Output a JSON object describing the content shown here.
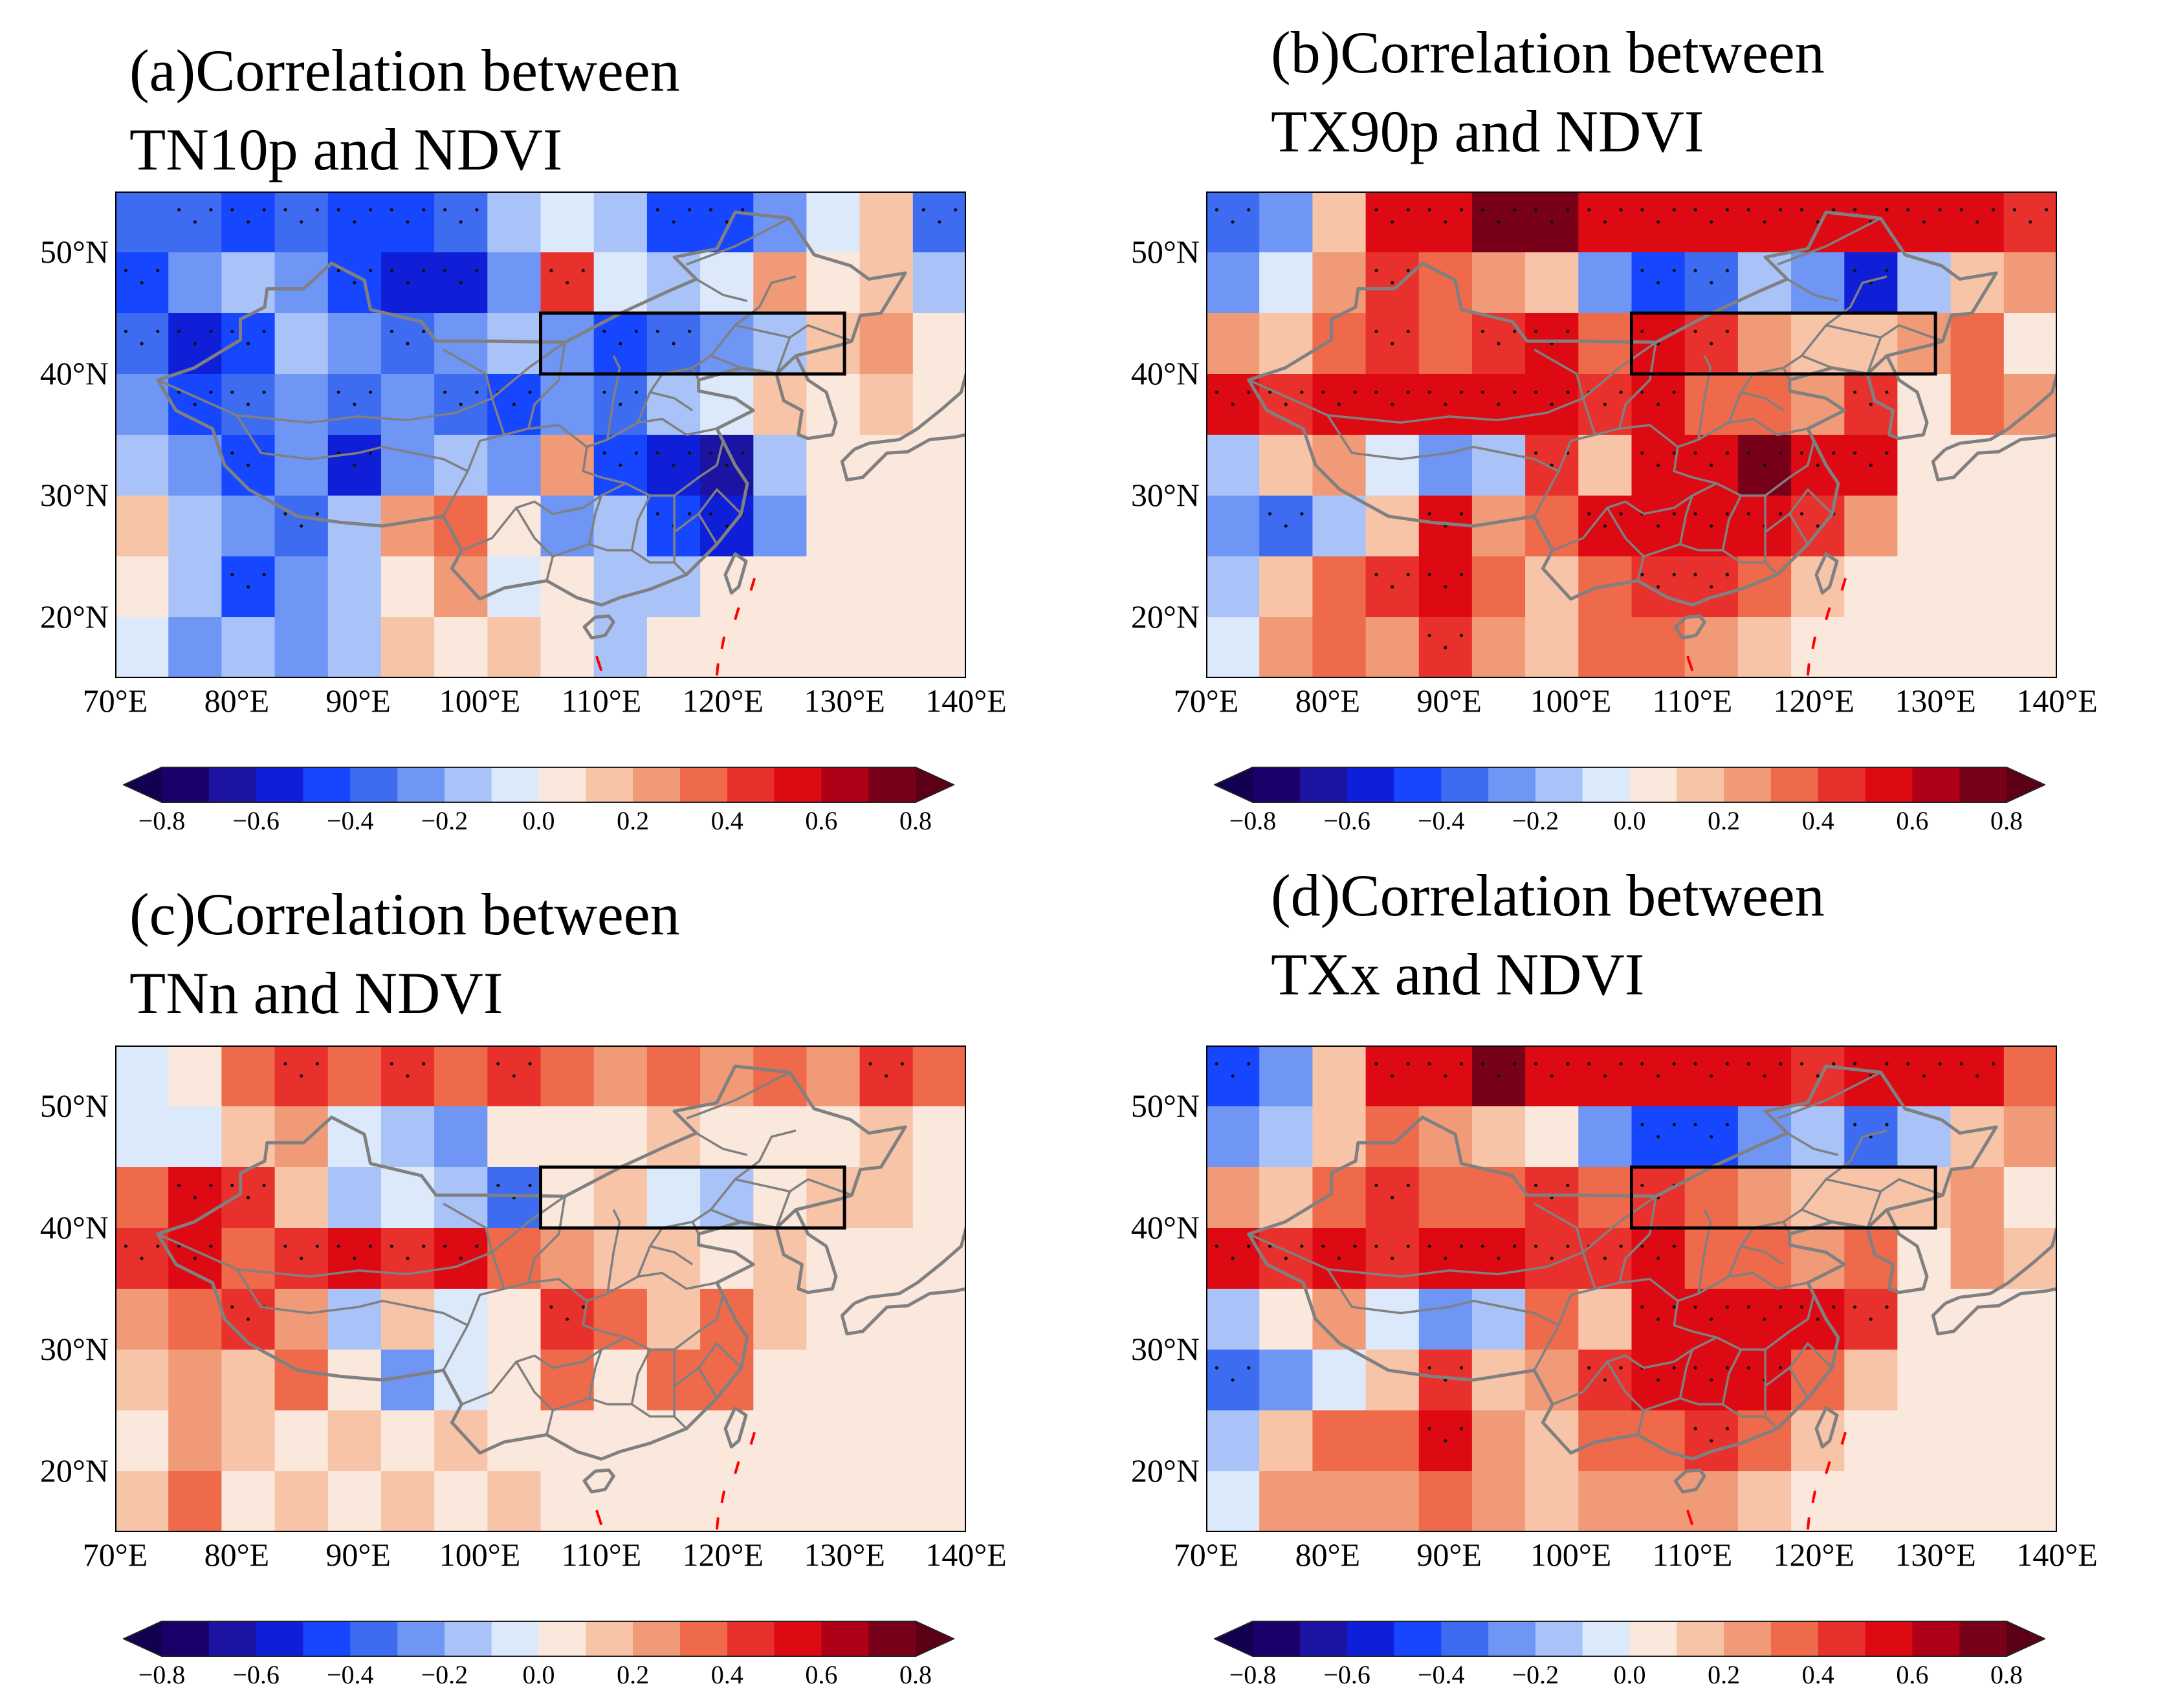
{
  "panels": [
    {
      "id": "a",
      "title_line1": "(a)Correlation between",
      "title_line2": "TN10p and NDVI",
      "fields": [
        [
          -0.35,
          -0.4,
          -0.5,
          -0.4,
          -0.5,
          -0.5,
          -0.4,
          -0.2,
          -0.1,
          -0.2,
          -0.5,
          -0.5,
          -0.3,
          -0.1,
          0.1,
          -0.4
        ],
        [
          -0.5,
          -0.3,
          -0.2,
          -0.3,
          -0.5,
          -0.6,
          -0.6,
          -0.3,
          0.4,
          -0.1,
          -0.2,
          -0.1,
          0.2,
          0.0,
          0.1,
          -0.2
        ],
        [
          -0.4,
          -0.6,
          -0.5,
          -0.2,
          -0.3,
          -0.4,
          -0.3,
          -0.2,
          -0.3,
          -0.5,
          -0.4,
          -0.3,
          -0.2,
          0.1,
          0.2,
          0.0
        ],
        [
          -0.3,
          -0.5,
          -0.4,
          -0.3,
          -0.4,
          -0.3,
          -0.4,
          -0.5,
          -0.3,
          -0.4,
          -0.2,
          -0.1,
          0.1,
          0.0,
          0.1,
          0.0
        ],
        [
          -0.2,
          -0.3,
          -0.5,
          -0.3,
          -0.6,
          -0.3,
          -0.2,
          -0.3,
          0.2,
          -0.5,
          -0.6,
          -0.7,
          -0.2,
          0.0,
          0.0,
          0.0
        ],
        [
          0.1,
          -0.2,
          -0.3,
          -0.4,
          -0.2,
          0.2,
          0.3,
          0.0,
          -0.3,
          -0.2,
          -0.5,
          -0.6,
          -0.3,
          0.0,
          0.0,
          0.0
        ],
        [
          0.0,
          -0.2,
          -0.5,
          -0.3,
          -0.2,
          0.0,
          0.2,
          -0.1,
          0.0,
          -0.2,
          -0.2,
          0.0,
          0.0,
          0.0,
          0.0,
          0.0
        ],
        [
          -0.1,
          -0.3,
          -0.2,
          -0.3,
          -0.2,
          0.1,
          0.0,
          0.1,
          0.0,
          -0.2,
          0.0,
          0.0,
          0.0,
          0.0,
          0.0,
          0.0
        ]
      ],
      "xticks": [
        "70°E",
        "80°E",
        "90°E",
        "100°E",
        "110°E",
        "120°E",
        "130°E",
        "140°E"
      ],
      "yticks": [
        "50°N",
        "40°N",
        "30°N",
        "20°N"
      ],
      "colorbar_ticks": [
        "−0.8",
        "−0.6",
        "−0.4",
        "−0.2",
        "0.0",
        "0.2",
        "0.4",
        "0.6",
        "0.8"
      ]
    },
    {
      "id": "b",
      "title_line1": "(b)Correlation between",
      "title_line2": "TX90p and NDVI",
      "fields": [
        [
          -0.4,
          -0.3,
          0.1,
          0.5,
          0.6,
          0.7,
          0.7,
          0.6,
          0.6,
          0.5,
          0.6,
          0.5,
          0.6,
          0.5,
          0.6,
          0.4
        ],
        [
          -0.3,
          -0.1,
          0.2,
          0.4,
          0.3,
          0.2,
          0.1,
          -0.3,
          -0.5,
          -0.4,
          -0.2,
          -0.3,
          -0.6,
          -0.2,
          0.1,
          0.2
        ],
        [
          0.2,
          0.1,
          0.3,
          0.4,
          0.3,
          0.4,
          0.5,
          0.3,
          0.5,
          0.4,
          0.2,
          0.1,
          0.1,
          0.2,
          0.3,
          0.0
        ],
        [
          0.5,
          0.4,
          0.6,
          0.5,
          0.6,
          0.5,
          0.5,
          0.4,
          0.5,
          0.3,
          0.3,
          0.2,
          0.4,
          0.0,
          0.3,
          0.2
        ],
        [
          -0.2,
          0.1,
          0.2,
          -0.1,
          -0.3,
          -0.2,
          0.4,
          0.1,
          0.6,
          0.6,
          0.7,
          0.6,
          0.5,
          0.0,
          0.0,
          0.0
        ],
        [
          -0.3,
          -0.4,
          -0.2,
          0.1,
          0.5,
          0.2,
          0.3,
          0.5,
          0.5,
          0.6,
          0.5,
          0.4,
          0.2,
          0.0,
          0.0,
          0.0
        ],
        [
          -0.2,
          0.1,
          0.3,
          0.4,
          0.6,
          0.3,
          0.1,
          0.3,
          0.4,
          0.4,
          0.3,
          0.1,
          0.0,
          0.0,
          0.0,
          0.0
        ],
        [
          -0.1,
          0.2,
          0.3,
          0.2,
          0.4,
          0.2,
          0.1,
          0.3,
          0.3,
          0.2,
          0.1,
          0.0,
          0.0,
          0.0,
          0.0,
          0.0
        ]
      ],
      "xticks": [
        "70°E",
        "80°E",
        "90°E",
        "100°E",
        "110°E",
        "120°E",
        "130°E",
        "140°E"
      ],
      "yticks": [
        "50°N",
        "40°N",
        "30°N",
        "20°N"
      ],
      "colorbar_ticks": [
        "−0.8",
        "−0.6",
        "−0.4",
        "−0.2",
        "0.0",
        "0.2",
        "0.4",
        "0.6",
        "0.8"
      ]
    },
    {
      "id": "c",
      "title_line1": "(c)Correlation between",
      "title_line2": "TNn and NDVI",
      "fields": [
        [
          -0.1,
          0.0,
          0.3,
          0.4,
          0.3,
          0.4,
          0.3,
          0.4,
          0.3,
          0.2,
          0.3,
          0.2,
          0.3,
          0.2,
          0.4,
          0.3
        ],
        [
          -0.1,
          -0.1,
          0.1,
          0.2,
          -0.1,
          -0.2,
          -0.3,
          0.0,
          0.0,
          0.0,
          0.1,
          0.0,
          0.0,
          0.0,
          0.1,
          0.0
        ],
        [
          0.3,
          0.5,
          0.4,
          0.1,
          -0.2,
          -0.1,
          -0.2,
          -0.4,
          0.0,
          0.1,
          -0.1,
          -0.2,
          0.0,
          0.1,
          0.1,
          0.0
        ],
        [
          0.4,
          0.6,
          0.3,
          0.4,
          0.5,
          0.4,
          0.5,
          0.3,
          0.2,
          0.1,
          0.1,
          0.0,
          0.1,
          0.0,
          0.0,
          0.0
        ],
        [
          0.2,
          0.3,
          0.4,
          0.2,
          -0.2,
          0.1,
          -0.1,
          0.0,
          0.4,
          0.3,
          0.1,
          0.3,
          0.1,
          0.0,
          0.0,
          0.0
        ],
        [
          0.1,
          0.2,
          0.1,
          0.3,
          0.0,
          -0.3,
          -0.1,
          0.0,
          0.3,
          0.0,
          0.3,
          0.3,
          0.0,
          0.0,
          0.0,
          0.0
        ],
        [
          0.0,
          0.2,
          0.1,
          0.0,
          0.1,
          0.0,
          0.1,
          0.0,
          0.0,
          0.0,
          0.0,
          0.0,
          0.0,
          0.0,
          0.0,
          0.0
        ],
        [
          0.1,
          0.3,
          0.0,
          0.1,
          0.0,
          0.1,
          0.0,
          0.1,
          0.0,
          0.0,
          0.0,
          0.0,
          0.0,
          0.0,
          0.0,
          0.0
        ]
      ],
      "xticks": [
        "70°E",
        "80°E",
        "90°E",
        "100°E",
        "110°E",
        "120°E",
        "130°E",
        "140°E"
      ],
      "yticks": [
        "50°N",
        "40°N",
        "30°N",
        "20°N"
      ],
      "colorbar_ticks": [
        "−0.8",
        "−0.6",
        "−0.4",
        "−0.2",
        "0.0",
        "0.2",
        "0.4",
        "0.6",
        "0.8"
      ]
    },
    {
      "id": "d",
      "title_line1": "(d)Correlation between",
      "title_line2": "TXx and NDVI",
      "fields": [
        [
          -0.5,
          -0.3,
          0.1,
          0.5,
          0.6,
          0.7,
          0.6,
          0.5,
          0.6,
          0.5,
          0.5,
          0.4,
          0.6,
          0.6,
          0.5,
          0.3
        ],
        [
          -0.3,
          -0.2,
          0.1,
          0.3,
          0.2,
          0.1,
          0.0,
          -0.3,
          -0.5,
          -0.5,
          -0.3,
          -0.2,
          -0.4,
          -0.2,
          0.1,
          0.2
        ],
        [
          0.2,
          0.1,
          0.3,
          0.4,
          0.3,
          0.3,
          0.4,
          0.3,
          0.4,
          0.3,
          0.2,
          0.1,
          0.1,
          0.1,
          0.2,
          0.0
        ],
        [
          0.5,
          0.4,
          0.5,
          0.4,
          0.6,
          0.5,
          0.4,
          0.4,
          0.5,
          0.3,
          0.3,
          0.2,
          0.3,
          0.0,
          0.2,
          0.1
        ],
        [
          -0.2,
          0.0,
          0.2,
          -0.1,
          -0.3,
          -0.2,
          0.3,
          0.1,
          0.6,
          0.6,
          0.6,
          0.5,
          0.4,
          0.0,
          0.0,
          0.0
        ],
        [
          -0.4,
          -0.3,
          -0.1,
          0.1,
          0.4,
          0.1,
          0.2,
          0.4,
          0.5,
          0.5,
          0.5,
          0.3,
          0.1,
          0.0,
          0.0,
          0.0
        ],
        [
          -0.2,
          0.1,
          0.3,
          0.3,
          0.5,
          0.2,
          0.1,
          0.3,
          0.3,
          0.4,
          0.3,
          0.1,
          0.0,
          0.0,
          0.0,
          0.0
        ],
        [
          -0.1,
          0.2,
          0.2,
          0.2,
          0.3,
          0.2,
          0.1,
          0.2,
          0.2,
          0.2,
          0.1,
          0.0,
          0.0,
          0.0,
          0.0,
          0.0
        ]
      ],
      "xticks": [
        "70°E",
        "80°E",
        "90°E",
        "100°E",
        "110°E",
        "120°E",
        "130°E",
        "140°E"
      ],
      "yticks": [
        "50°N",
        "40°N",
        "30°N",
        "20°N"
      ],
      "colorbar_ticks": [
        "−0.8",
        "−0.6",
        "−0.4",
        "−0.2",
        "0.0",
        "0.2",
        "0.4",
        "0.6",
        "0.8"
      ]
    }
  ],
  "study_region": {
    "lon_range": [
      105,
      130
    ],
    "lat_range": [
      40,
      45
    ]
  },
  "colorbar_colors": [
    "#1a0068",
    "#1b14a3",
    "#0f1fd8",
    "#1746ff",
    "#3d6cf0",
    "#6f95f5",
    "#a9c3f8",
    "#dbe9fb",
    "#fbe8dd",
    "#f7c4a8",
    "#f09a78",
    "#ee6a4a",
    "#e8312c",
    "#dd0a14",
    "#b00017",
    "#780019"
  ],
  "colors": {
    "border": "#808080",
    "box": "#000000",
    "dashline": "#ff0000"
  }
}
